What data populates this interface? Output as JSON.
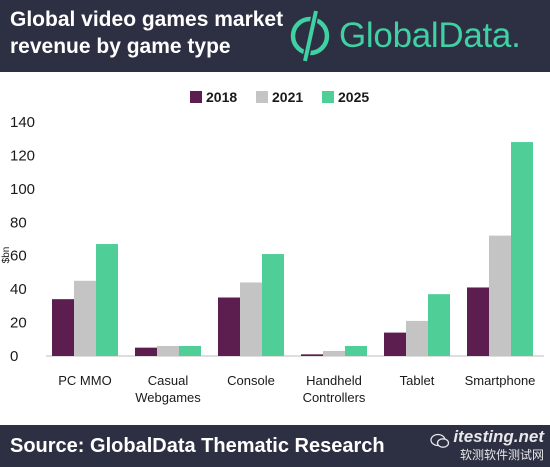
{
  "header": {
    "title_line1": "Global video games market",
    "title_line2": "revenue by game type",
    "logo_text": "GlobalData."
  },
  "footer": {
    "source": "Source:  GlobalData Thematic Research",
    "watermark_line1": "itesting.net",
    "watermark_line2": "软测软件测试网"
  },
  "colors": {
    "header_bg": "#2d2f42",
    "accent": "#3fd0a3",
    "series_2018": "#5c1e4e",
    "series_2021": "#c4c4c4",
    "series_2025": "#4fcf97"
  },
  "chart_data": {
    "type": "bar",
    "title": "Global video games market revenue by game type",
    "xlabel": "",
    "ylabel": "$bn",
    "ylim": [
      0,
      140
    ],
    "yticks": [
      0,
      20,
      40,
      60,
      80,
      100,
      120,
      140
    ],
    "grid": false,
    "legend_position": "top",
    "categories": [
      [
        "PC MMO"
      ],
      [
        "Casual",
        "Webgames"
      ],
      [
        "Console"
      ],
      [
        "Handheld",
        "Controllers"
      ],
      [
        "Tablet"
      ],
      [
        "Smartphone"
      ]
    ],
    "series": [
      {
        "name": "2018",
        "color": "#5c1e4e",
        "values": [
          34,
          5,
          35,
          1,
          14,
          41
        ]
      },
      {
        "name": "2021",
        "color": "#c4c4c4",
        "values": [
          45,
          6,
          44,
          3,
          21,
          72
        ]
      },
      {
        "name": "2025",
        "color": "#4fcf97",
        "values": [
          67,
          6,
          61,
          6,
          37,
          128
        ]
      }
    ]
  }
}
